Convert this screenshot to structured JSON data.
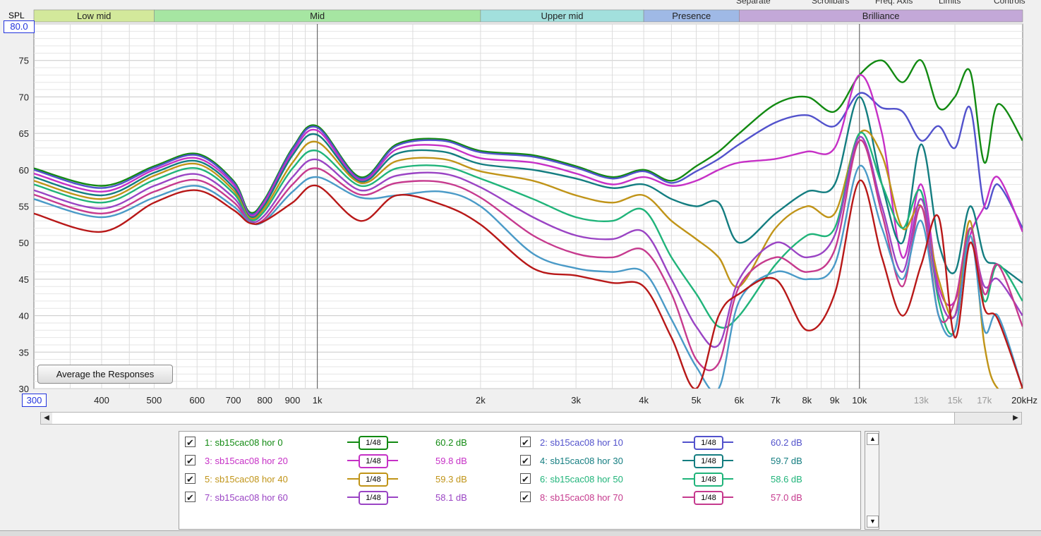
{
  "top_controls": [
    "Separate",
    "Scrollbars",
    "Freq. Axis",
    "Limits",
    "Controls"
  ],
  "y_axis_label": "SPL",
  "y_max_box": "80.0",
  "x_min_box": "300",
  "average_button": "Average the Responses",
  "bands": [
    {
      "label": "Low mid",
      "from": 300,
      "to": 500,
      "color": "#d3e99b"
    },
    {
      "label": "Mid",
      "from": 500,
      "to": 2000,
      "color": "#a6e6a2"
    },
    {
      "label": "Upper mid",
      "from": 2000,
      "to": 4000,
      "color": "#a2e0dd"
    },
    {
      "label": "Presence",
      "from": 4000,
      "to": 6000,
      "color": "#9fb9e6"
    },
    {
      "label": "Brilliance",
      "from": 6000,
      "to": 20000,
      "color": "#c3a8d8"
    }
  ],
  "chart_data": {
    "type": "line",
    "title": "",
    "xlabel": "",
    "ylabel": "SPL",
    "x_scale": "log",
    "xlim": [
      300,
      20000
    ],
    "ylim": [
      30,
      80
    ],
    "y_ticks": [
      30,
      35,
      40,
      45,
      50,
      55,
      60,
      65,
      70,
      75
    ],
    "x_ticks": [
      {
        "v": 400,
        "label": "400"
      },
      {
        "v": 500,
        "label": "500"
      },
      {
        "v": 600,
        "label": "600"
      },
      {
        "v": 700,
        "label": "700"
      },
      {
        "v": 800,
        "label": "800"
      },
      {
        "v": 900,
        "label": "900"
      },
      {
        "v": 1000,
        "label": "1k"
      },
      {
        "v": 2000,
        "label": "2k"
      },
      {
        "v": 3000,
        "label": "3k"
      },
      {
        "v": 4000,
        "label": "4k"
      },
      {
        "v": 5000,
        "label": "5k"
      },
      {
        "v": 6000,
        "label": "6k"
      },
      {
        "v": 7000,
        "label": "7k"
      },
      {
        "v": 8000,
        "label": "8k"
      },
      {
        "v": 9000,
        "label": "9k"
      },
      {
        "v": 10000,
        "label": "10k"
      },
      {
        "v": 13000,
        "label": "13k",
        "dim": true
      },
      {
        "v": 15000,
        "label": "15k",
        "dim": true
      },
      {
        "v": 17000,
        "label": "17k",
        "dim": true
      },
      {
        "v": 20000,
        "label": "20kHz"
      }
    ],
    "grid": true,
    "x": [
      300,
      400,
      500,
      600,
      700,
      750,
      800,
      900,
      1000,
      1200,
      1400,
      1700,
      2000,
      2500,
      3000,
      3500,
      4000,
      4500,
      5000,
      5500,
      6000,
      7000,
      8000,
      9000,
      10000,
      11000,
      12000,
      13000,
      14000,
      15000,
      16000,
      17000,
      18000,
      20000
    ],
    "series": [
      {
        "name": "1: sb15cac08 hor 0",
        "color": "#128a12",
        "values": [
          60.2,
          57.8,
          60.5,
          62.2,
          58.5,
          54.2,
          56.0,
          63.0,
          66.0,
          59.0,
          63.5,
          64.2,
          62.6,
          62.0,
          60.5,
          59.0,
          60.0,
          58.5,
          60.5,
          62.5,
          65.0,
          69.0,
          70.0,
          68.0,
          73.0,
          75.0,
          72.0,
          75.0,
          68.5,
          70.0,
          73.5,
          61.0,
          69.0,
          64.0
        ]
      },
      {
        "name": "2: sb15cac08 hor 10",
        "color": "#5252cc",
        "values": [
          60.0,
          57.5,
          60.3,
          62.0,
          58.3,
          54.0,
          55.8,
          62.8,
          65.8,
          58.8,
          63.3,
          64.0,
          62.4,
          61.8,
          60.3,
          58.8,
          59.8,
          58.2,
          59.8,
          61.5,
          63.5,
          66.5,
          67.5,
          66.0,
          70.5,
          68.5,
          68.0,
          64.0,
          66.0,
          63.0,
          68.5,
          55.0,
          58.0,
          52.0
        ]
      },
      {
        "name": "3: sb15cac08 hor 20",
        "color": "#c630c6",
        "values": [
          59.5,
          57.0,
          60.0,
          61.6,
          58.0,
          53.8,
          55.6,
          62.4,
          65.4,
          58.6,
          62.8,
          63.3,
          61.6,
          61.0,
          59.5,
          58.0,
          59.0,
          57.8,
          58.5,
          60.0,
          61.0,
          61.5,
          62.5,
          63.0,
          73.0,
          65.0,
          48.0,
          58.0,
          44.0,
          42.0,
          51.0,
          55.0,
          59.0,
          51.5
        ]
      },
      {
        "name": "4: sb15cac08 hor 30",
        "color": "#137d80",
        "values": [
          59.0,
          56.5,
          59.6,
          61.2,
          57.6,
          53.6,
          55.2,
          62.0,
          64.8,
          58.4,
          62.2,
          62.5,
          60.8,
          60.0,
          58.8,
          57.5,
          58.0,
          56.0,
          55.0,
          55.5,
          50.0,
          54.0,
          57.0,
          58.0,
          70.0,
          58.0,
          50.0,
          63.5,
          50.0,
          46.0,
          55.0,
          48.0,
          47.0,
          44.5
        ]
      },
      {
        "name": "5: sb15cac08 hor 40",
        "color": "#c09418",
        "values": [
          58.5,
          56.0,
          59.2,
          60.8,
          57.2,
          53.4,
          54.8,
          61.0,
          63.8,
          58.2,
          61.2,
          61.5,
          59.8,
          58.5,
          56.5,
          55.5,
          56.5,
          53.0,
          50.5,
          48.0,
          44.0,
          52.0,
          55.0,
          54.0,
          65.0,
          62.0,
          52.0,
          55.0,
          45.0,
          40.0,
          53.0,
          36.0,
          30.0,
          30.0
        ]
      },
      {
        "name": "6: sb15cac08 hor 50",
        "color": "#20b47a",
        "values": [
          58.0,
          55.5,
          58.6,
          60.2,
          56.8,
          53.2,
          54.4,
          60.2,
          62.6,
          57.8,
          60.2,
          60.5,
          58.8,
          56.0,
          53.5,
          53.0,
          54.5,
          48.0,
          43.0,
          38.5,
          40.0,
          47.0,
          51.0,
          52.0,
          65.0,
          58.0,
          52.0,
          57.0,
          42.0,
          38.0,
          52.0,
          42.0,
          47.0,
          42.0
        ]
      },
      {
        "name": "7: sb15cac08 hor 60",
        "color": "#9a44c4",
        "values": [
          57.2,
          54.7,
          57.8,
          59.4,
          56.2,
          53.0,
          53.8,
          59.0,
          61.4,
          57.2,
          59.2,
          59.5,
          57.6,
          53.5,
          51.0,
          50.5,
          51.5,
          45.0,
          38.5,
          36.0,
          45.0,
          50.0,
          48.0,
          51.0,
          64.5,
          55.0,
          46.0,
          56.0,
          43.0,
          40.0,
          50.0,
          44.0,
          45.0,
          40.0
        ]
      },
      {
        "name": "8: sb15cac08 hor 70",
        "color": "#c63a8e",
        "values": [
          56.6,
          54.0,
          57.0,
          58.6,
          55.6,
          52.8,
          53.3,
          58.0,
          60.2,
          56.6,
          58.2,
          58.3,
          56.2,
          51.0,
          48.5,
          48.0,
          49.0,
          43.0,
          34.0,
          33.5,
          44.0,
          48.0,
          46.0,
          49.0,
          64.0,
          54.0,
          44.0,
          55.0,
          40.0,
          42.0,
          52.0,
          43.0,
          47.0,
          38.5
        ]
      },
      {
        "name": "",
        "color": "#4a9ac7",
        "values": [
          56.0,
          53.5,
          56.2,
          57.8,
          55.0,
          52.8,
          53.0,
          57.0,
          59.0,
          56.2,
          56.5,
          57.0,
          55.0,
          48.5,
          46.5,
          46.0,
          46.0,
          39.5,
          33.0,
          30.0,
          42.0,
          46.0,
          45.0,
          47.0,
          60.5,
          52.0,
          45.0,
          53.0,
          40.0,
          38.0,
          51.0,
          38.0,
          40.0,
          30.0
        ]
      },
      {
        "name": "",
        "color": "#b81818",
        "values": [
          54.0,
          51.5,
          55.5,
          57.2,
          54.5,
          52.7,
          53.0,
          55.5,
          57.8,
          53.0,
          56.5,
          55.2,
          52.5,
          46.5,
          45.5,
          44.5,
          44.0,
          37.0,
          30.0,
          40.0,
          43.0,
          45.0,
          38.0,
          43.0,
          58.5,
          48.0,
          40.0,
          47.0,
          53.5,
          37.0,
          50.0,
          41.0,
          39.5,
          30.0
        ]
      }
    ],
    "legend_position": "bottom"
  },
  "legend": [
    {
      "label": "1: sb15cac08 hor 0",
      "smoothing": "1/48",
      "level": "60.2 dB",
      "color": "#128a12"
    },
    {
      "label": "2: sb15cac08 hor 10",
      "smoothing": "1/48",
      "level": "60.2 dB",
      "color": "#5252cc"
    },
    {
      "label": "3: sb15cac08 hor 20",
      "smoothing": "1/48",
      "level": "59.8 dB",
      "color": "#c630c6"
    },
    {
      "label": "4: sb15cac08 hor 30",
      "smoothing": "1/48",
      "level": "59.7 dB",
      "color": "#137d80"
    },
    {
      "label": "5: sb15cac08 hor 40",
      "smoothing": "1/48",
      "level": "59.3 dB",
      "color": "#c09418"
    },
    {
      "label": "6: sb15cac08 hor 50",
      "smoothing": "1/48",
      "level": "58.6 dB",
      "color": "#20b47a"
    },
    {
      "label": "7: sb15cac08 hor 60",
      "smoothing": "1/48",
      "level": "58.1 dB",
      "color": "#9a44c4"
    },
    {
      "label": "8: sb15cac08 hor 70",
      "smoothing": "1/48",
      "level": "57.0 dB",
      "color": "#c63a8e"
    }
  ]
}
